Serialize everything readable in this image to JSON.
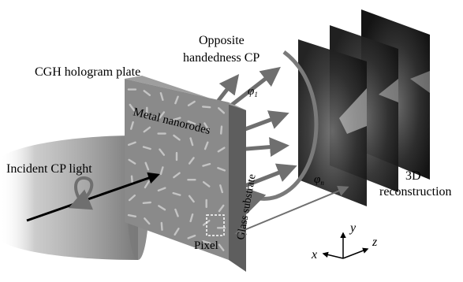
{
  "labels": {
    "opposite_cp_line1": "Opposite",
    "opposite_cp_line2": "handedness CP",
    "cgh_plate": "CGH hologram plate",
    "metal_nanorodes": "Metal nanorodes",
    "incident_light": "Incident CP light",
    "glass_substrate": "Glass substrate",
    "pixel": "Pixel",
    "reconstruction_3d_line1": "3D",
    "reconstruction_3d_line2": "reconstruction",
    "phi_1_symbol": "φ",
    "phi_1_sub": "1",
    "phi_n_symbol": "φ",
    "phi_n_sub": "n"
  },
  "axes": {
    "x": "x",
    "y": "y",
    "z": "z"
  },
  "colors": {
    "arrow_gray": "#6f6f6f",
    "plate_face": "#8a8a8a",
    "plate_side": "#5e5e5e",
    "rod_color": "#c4c4c4"
  }
}
